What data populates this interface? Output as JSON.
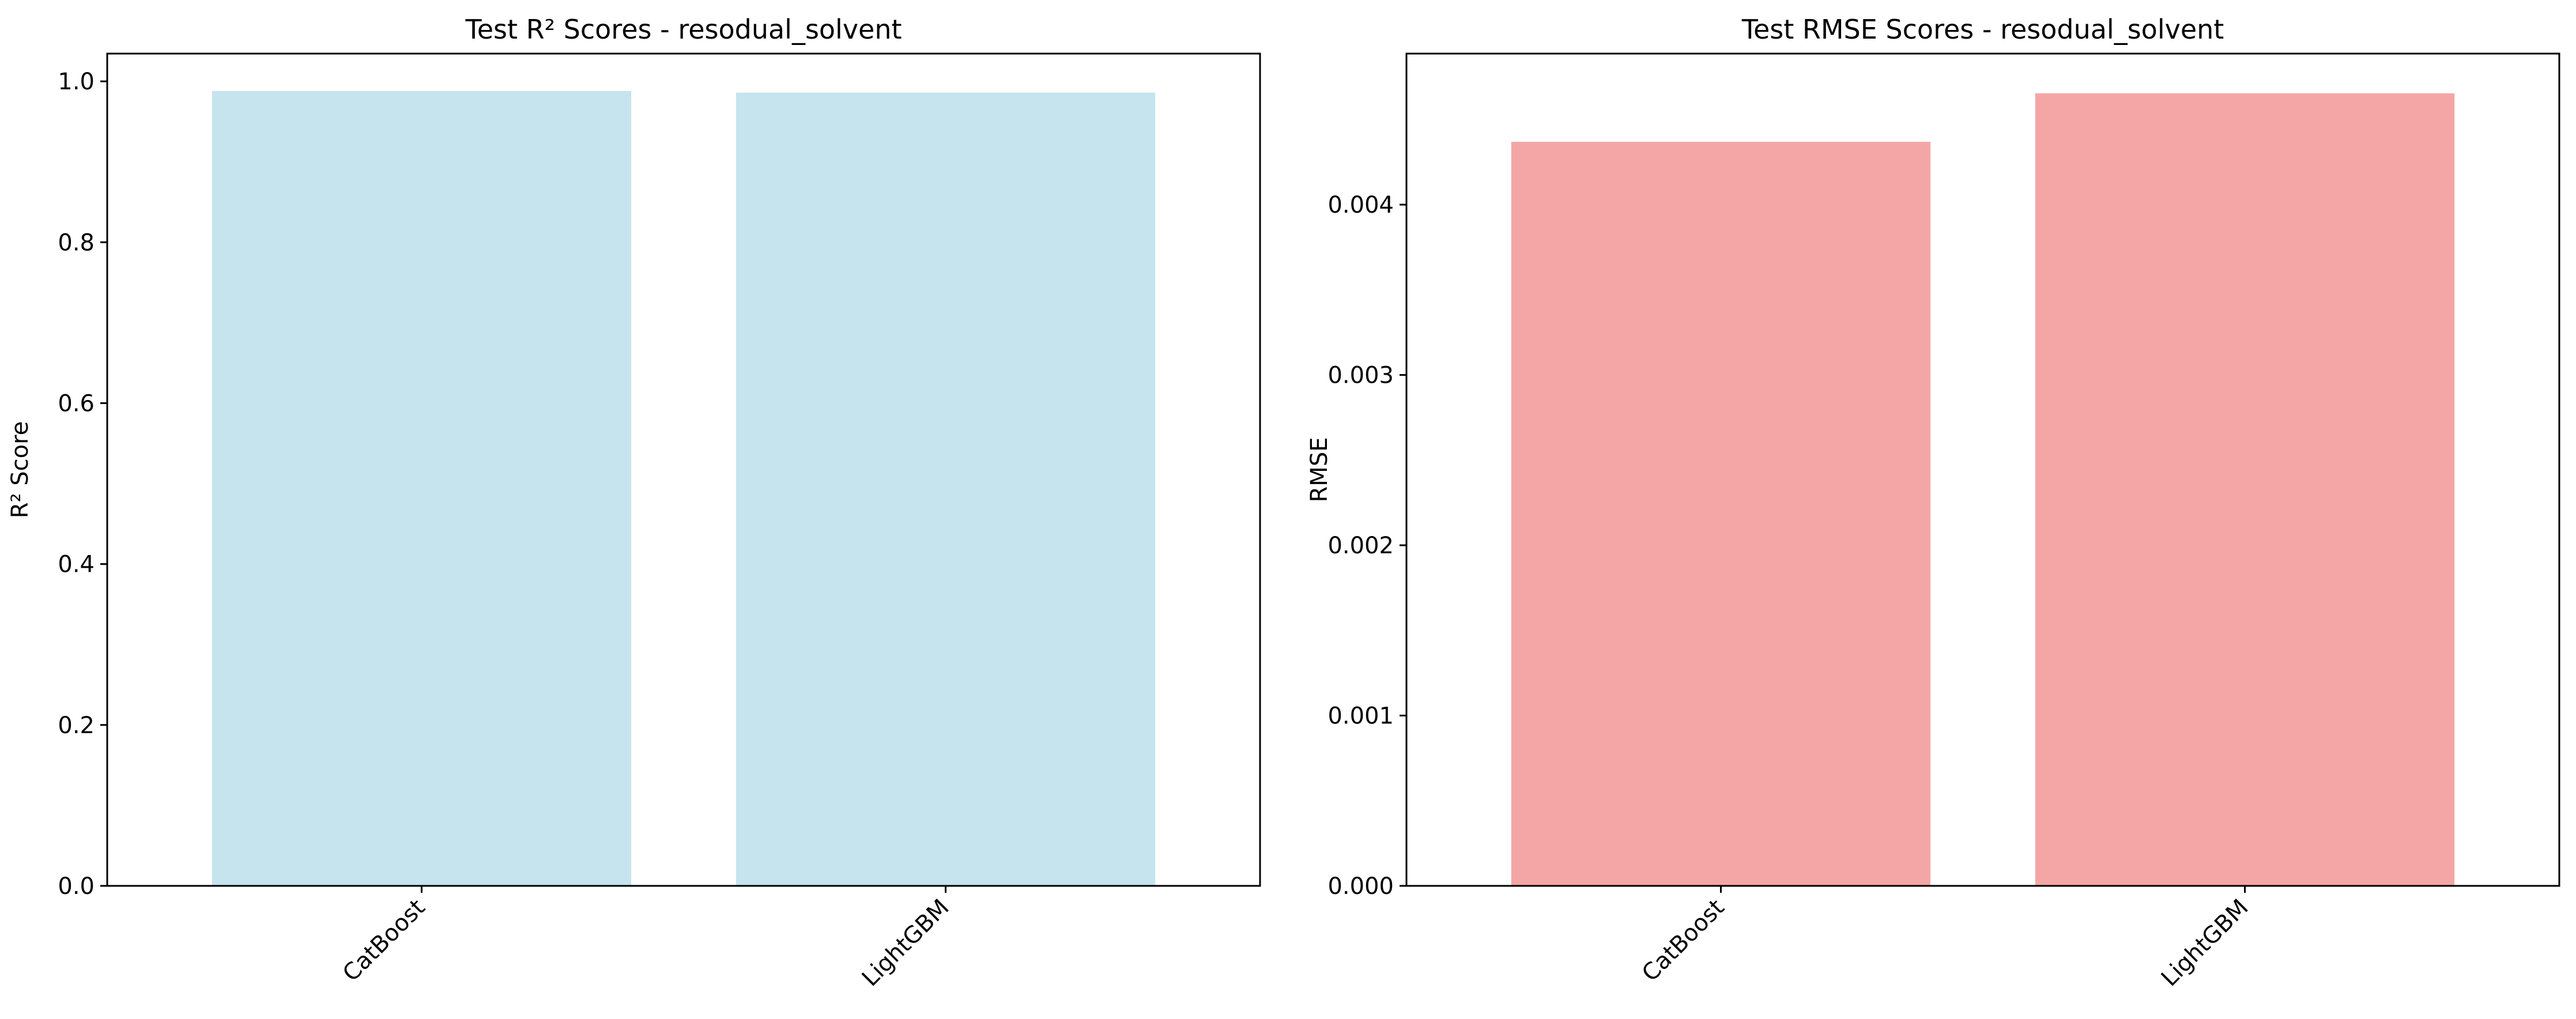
{
  "chart_data": [
    {
      "type": "bar",
      "title": "Test R² Scores - resodual_solvent",
      "xlabel": "",
      "ylabel": "R² Score",
      "categories": [
        "CatBoost",
        "LightGBM"
      ],
      "values": [
        0.988,
        0.986
      ],
      "ylim": [
        0,
        1.0345
      ],
      "yticks": [
        0.0,
        0.2,
        0.4,
        0.6,
        0.8,
        1.0
      ],
      "ytick_labels": [
        "0.0",
        "0.2",
        "0.4",
        "0.6",
        "0.8",
        "1.0"
      ],
      "bar_color": "#add8e6",
      "grid": false,
      "xtick_rotation_deg": 45
    },
    {
      "type": "bar",
      "title": "Test RMSE Scores - resodual_solvent",
      "xlabel": "",
      "ylabel": "RMSE",
      "categories": [
        "CatBoost",
        "LightGBM"
      ],
      "values": [
        0.004369,
        0.004654
      ],
      "ylim": [
        0,
        0.004887
      ],
      "yticks": [
        0.0,
        0.001,
        0.002,
        0.003,
        0.004
      ],
      "ytick_labels": [
        "0.000",
        "0.001",
        "0.002",
        "0.003",
        "0.004"
      ],
      "bar_color": "#f08080",
      "grid": false,
      "xtick_rotation_deg": 45
    }
  ]
}
